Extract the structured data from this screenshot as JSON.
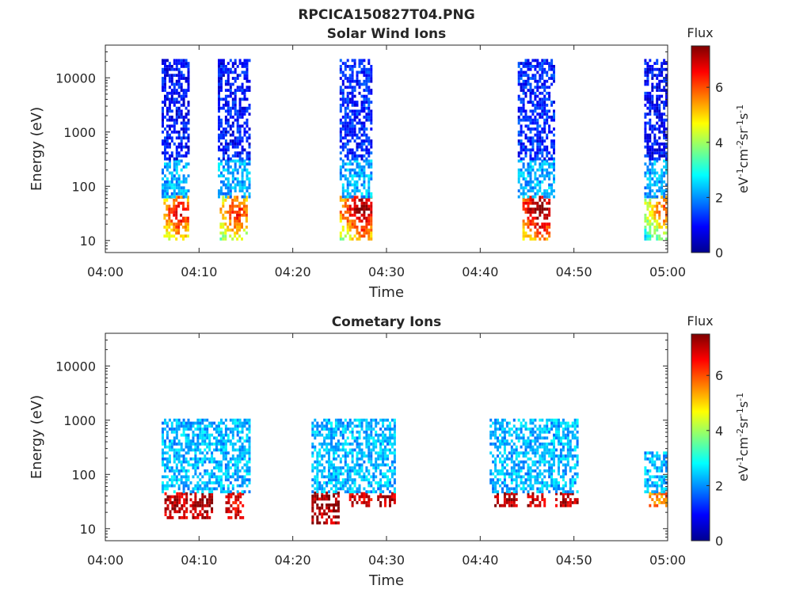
{
  "figure": {
    "title": "RPCICA150827T04.PNG"
  },
  "colorbar": {
    "title": "Flux",
    "ticks": [
      "0",
      "2",
      "4",
      "6"
    ],
    "range": [
      0,
      7.5
    ]
  },
  "chart_data": [
    {
      "type": "heatmap",
      "title": "Solar Wind Ions",
      "xlabel": "Time",
      "ylabel": "Energy (eV)",
      "x_ticks": [
        "04:00",
        "04:10",
        "04:20",
        "04:30",
        "04:40",
        "04:50",
        "05:00"
      ],
      "y_ticks": [
        "10",
        "100",
        "1000",
        "10000"
      ],
      "xlim": [
        "04:00",
        "05:00"
      ],
      "ylim": [
        6,
        40000
      ],
      "yscale": "log",
      "grid": false,
      "colormap": "jet",
      "colorbar_label": "eV-1cm-2sr-1s-1",
      "patches": [
        {
          "t": [
            6.2,
            8.8
          ],
          "e": [
            10,
            60
          ],
          "flux": 5.8,
          "peak_t": 7.8,
          "peak_e": 30
        },
        {
          "t": [
            6.0,
            9.0
          ],
          "e": [
            60,
            300
          ],
          "flux": 2.2
        },
        {
          "t": [
            6.0,
            9.0
          ],
          "e": [
            300,
            20000
          ],
          "flux": 1.0
        },
        {
          "t": [
            12.2,
            15.2
          ],
          "e": [
            10,
            60
          ],
          "flux": 5.5,
          "peak_t": 13.8,
          "peak_e": 30
        },
        {
          "t": [
            12.0,
            15.5
          ],
          "e": [
            60,
            300
          ],
          "flux": 2.2
        },
        {
          "t": [
            12.0,
            15.5
          ],
          "e": [
            300,
            20000
          ],
          "flux": 1.0
        },
        {
          "t": [
            25.0,
            28.5
          ],
          "e": [
            10,
            60
          ],
          "flux": 6.5,
          "peak_t": 27.3,
          "peak_e": 35
        },
        {
          "t": [
            25.0,
            28.5
          ],
          "e": [
            60,
            300
          ],
          "flux": 2.2
        },
        {
          "t": [
            25.0,
            28.5
          ],
          "e": [
            300,
            20000
          ],
          "flux": 1.2
        },
        {
          "t": [
            44.5,
            47.5
          ],
          "e": [
            10,
            60
          ],
          "flux": 6.8,
          "peak_t": 46.3,
          "peak_e": 35
        },
        {
          "t": [
            44.0,
            48.0
          ],
          "e": [
            60,
            300
          ],
          "flux": 2.2
        },
        {
          "t": [
            44.0,
            48.0
          ],
          "e": [
            300,
            20000
          ],
          "flux": 1.2
        },
        {
          "t": [
            57.5,
            60.0
          ],
          "e": [
            10,
            60
          ],
          "flux": 5.0,
          "peak_t": 59.5,
          "peak_e": 35
        },
        {
          "t": [
            57.5,
            60.0
          ],
          "e": [
            60,
            300
          ],
          "flux": 2.2
        },
        {
          "t": [
            57.5,
            60.0
          ],
          "e": [
            300,
            20000
          ],
          "flux": 1.0
        }
      ]
    },
    {
      "type": "heatmap",
      "title": "Cometary Ions",
      "xlabel": "Time",
      "ylabel": "Energy (eV)",
      "x_ticks": [
        "04:00",
        "04:10",
        "04:20",
        "04:30",
        "04:40",
        "04:50",
        "05:00"
      ],
      "y_ticks": [
        "10",
        "100",
        "1000",
        "10000"
      ],
      "xlim": [
        "04:00",
        "05:00"
      ],
      "ylim": [
        6,
        40000
      ],
      "yscale": "log",
      "grid": false,
      "colormap": "jet",
      "colorbar_label": "eV-1cm-2sr-1s-1",
      "patches": [
        {
          "t": [
            6.3,
            8.7
          ],
          "e": [
            15,
            45
          ],
          "flux": 7.0
        },
        {
          "t": [
            9.0,
            11.5
          ],
          "e": [
            15,
            45
          ],
          "flux": 7.2
        },
        {
          "t": [
            12.8,
            14.8
          ],
          "e": [
            15,
            45
          ],
          "flux": 6.8
        },
        {
          "t": [
            22.0,
            25.0
          ],
          "e": [
            12,
            45
          ],
          "flux": 7.2
        },
        {
          "t": [
            26.0,
            28.5
          ],
          "e": [
            25,
            45
          ],
          "flux": 6.8
        },
        {
          "t": [
            29.0,
            31.0
          ],
          "e": [
            25,
            45
          ],
          "flux": 7.0
        },
        {
          "t": [
            41.5,
            44.0
          ],
          "e": [
            25,
            45
          ],
          "flux": 7.2
        },
        {
          "t": [
            45.0,
            47.0
          ],
          "e": [
            25,
            45
          ],
          "flux": 7.0
        },
        {
          "t": [
            48.0,
            50.5
          ],
          "e": [
            25,
            45
          ],
          "flux": 7.0
        },
        {
          "t": [
            58.0,
            60.0
          ],
          "e": [
            25,
            45
          ],
          "flux": 5.5
        },
        {
          "t": [
            6.0,
            15.5
          ],
          "e": [
            45,
            1000
          ],
          "flux": 2.3
        },
        {
          "t": [
            22.0,
            31.0
          ],
          "e": [
            45,
            1000
          ],
          "flux": 2.3
        },
        {
          "t": [
            41.0,
            50.5
          ],
          "e": [
            45,
            1000
          ],
          "flux": 2.3
        },
        {
          "t": [
            57.5,
            60.0
          ],
          "e": [
            45,
            250
          ],
          "flux": 2.3
        }
      ]
    }
  ]
}
